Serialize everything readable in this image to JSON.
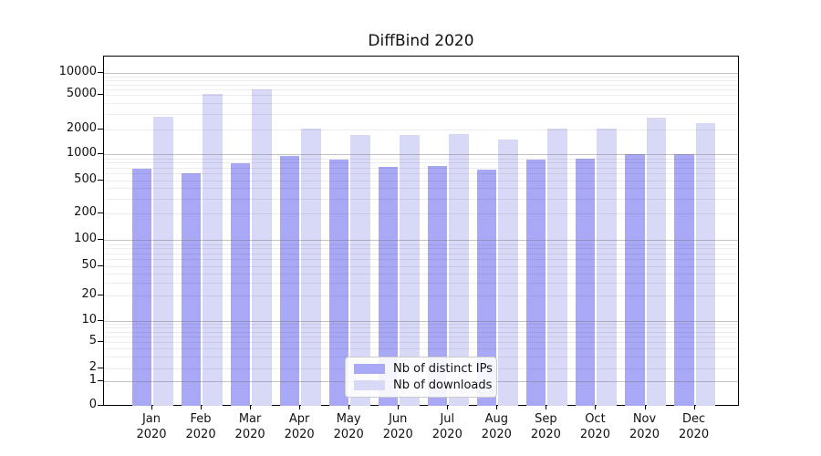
{
  "figure": {
    "title": "DiffBind 2020"
  },
  "chart_data": {
    "type": "bar",
    "title": "DiffBind 2020",
    "scale": "symlog",
    "grid": "on",
    "legend_position": "bottom-center-inside",
    "categories": [
      "Jan",
      "Feb",
      "Mar",
      "Apr",
      "May",
      "Jun",
      "Jul",
      "Aug",
      "Sep",
      "Oct",
      "Nov",
      "Dec"
    ],
    "category_year": "2020",
    "series": [
      {
        "name": "Nb of distinct IPs",
        "color": "#a8a8f7",
        "values": [
          680,
          610,
          780,
          950,
          860,
          720,
          740,
          660,
          860,
          890,
          1000,
          1000
        ]
      },
      {
        "name": "Nb of downloads",
        "color": "#d8d8f7",
        "values": [
          2800,
          5200,
          6000,
          2050,
          1700,
          1700,
          1750,
          1500,
          2050,
          2050,
          2750,
          2350
        ]
      }
    ],
    "y_ticks": [
      0,
      1,
      2,
      5,
      10,
      20,
      50,
      100,
      200,
      500,
      1000,
      2000,
      5000,
      10000
    ],
    "ylim": [
      0,
      13000
    ]
  }
}
